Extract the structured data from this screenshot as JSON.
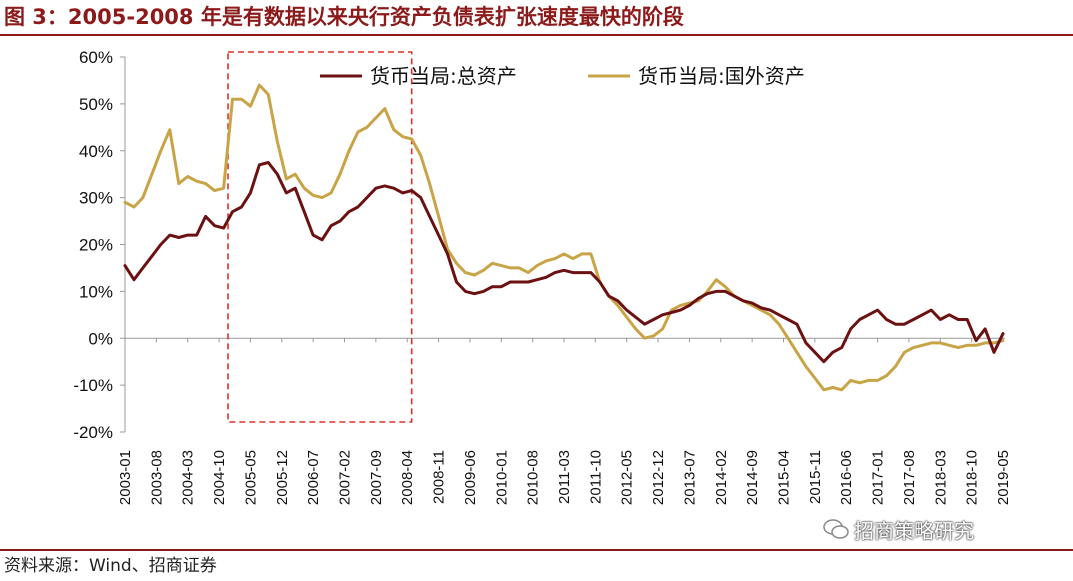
{
  "header": {
    "title": "图 3：2005-2008 年是有数据以来央行资产负债表扩张速度最快的阶段"
  },
  "footer": {
    "source": "资料来源：Wind、招商证券"
  },
  "watermark": {
    "text": "招商策略研究"
  },
  "colors": {
    "series_total": "#6b1111",
    "series_foreign": "#c8a446",
    "highlight_box": "#e0302a",
    "rule": "#8c1a1a",
    "axis": "#999999"
  },
  "chart_data": {
    "type": "line",
    "title": "",
    "xlabel": "",
    "ylabel": "",
    "ylim": [
      -0.2,
      0.6
    ],
    "yticks": [
      "60%",
      "50%",
      "40%",
      "30%",
      "20%",
      "10%",
      "0%",
      "-10%",
      "-20%"
    ],
    "ytick_values": [
      0.6,
      0.5,
      0.4,
      0.3,
      0.2,
      0.1,
      0.0,
      -0.1,
      -0.2
    ],
    "xticks": [
      "2003-01",
      "2003-08",
      "2004-03",
      "2004-10",
      "2005-05",
      "2005-12",
      "2006-07",
      "2007-02",
      "2007-09",
      "2008-04",
      "2008-11",
      "2009-06",
      "2010-01",
      "2010-08",
      "2011-03",
      "2011-10",
      "2012-05",
      "2012-12",
      "2013-07",
      "2014-02",
      "2014-09",
      "2015-04",
      "2015-11",
      "2016-06",
      "2017-01",
      "2017-08",
      "2018-03",
      "2018-10",
      "2019-05"
    ],
    "legend_position": "top-center",
    "grid": false,
    "highlight": {
      "from": "2004-12",
      "to": "2008-05"
    },
    "series": [
      {
        "name": "货币当局:总资产",
        "x": [
          "2003-01",
          "2003-03",
          "2003-05",
          "2003-07",
          "2003-09",
          "2003-11",
          "2004-01",
          "2004-03",
          "2004-05",
          "2004-07",
          "2004-09",
          "2004-11",
          "2005-01",
          "2005-03",
          "2005-05",
          "2005-07",
          "2005-09",
          "2005-11",
          "2006-01",
          "2006-03",
          "2006-05",
          "2006-07",
          "2006-09",
          "2006-11",
          "2007-01",
          "2007-03",
          "2007-05",
          "2007-07",
          "2007-09",
          "2007-11",
          "2008-01",
          "2008-03",
          "2008-05",
          "2008-07",
          "2008-09",
          "2008-11",
          "2009-01",
          "2009-03",
          "2009-05",
          "2009-07",
          "2009-09",
          "2009-11",
          "2010-01",
          "2010-03",
          "2010-05",
          "2010-07",
          "2010-09",
          "2010-11",
          "2011-01",
          "2011-03",
          "2011-05",
          "2011-07",
          "2011-09",
          "2011-11",
          "2012-01",
          "2012-03",
          "2012-05",
          "2012-07",
          "2012-09",
          "2012-11",
          "2013-01",
          "2013-03",
          "2013-05",
          "2013-07",
          "2013-09",
          "2013-11",
          "2014-01",
          "2014-03",
          "2014-05",
          "2014-07",
          "2014-09",
          "2014-11",
          "2015-01",
          "2015-03",
          "2015-05",
          "2015-07",
          "2015-09",
          "2015-11",
          "2016-01",
          "2016-03",
          "2016-05",
          "2016-07",
          "2016-09",
          "2016-11",
          "2017-01",
          "2017-03",
          "2017-05",
          "2017-07",
          "2017-09",
          "2017-11",
          "2018-01",
          "2018-03",
          "2018-05",
          "2018-07",
          "2018-09",
          "2018-11",
          "2019-01",
          "2019-03",
          "2019-05"
        ],
        "values": [
          0.155,
          0.125,
          0.15,
          0.175,
          0.2,
          0.22,
          0.215,
          0.22,
          0.22,
          0.26,
          0.24,
          0.235,
          0.27,
          0.28,
          0.31,
          0.37,
          0.375,
          0.35,
          0.31,
          0.32,
          0.27,
          0.22,
          0.21,
          0.24,
          0.25,
          0.27,
          0.28,
          0.3,
          0.32,
          0.325,
          0.32,
          0.31,
          0.315,
          0.3,
          0.26,
          0.22,
          0.18,
          0.12,
          0.1,
          0.095,
          0.1,
          0.11,
          0.11,
          0.12,
          0.12,
          0.12,
          0.125,
          0.13,
          0.14,
          0.145,
          0.14,
          0.14,
          0.14,
          0.12,
          0.09,
          0.08,
          0.06,
          0.045,
          0.03,
          0.04,
          0.05,
          0.055,
          0.06,
          0.07,
          0.085,
          0.095,
          0.1,
          0.1,
          0.09,
          0.08,
          0.075,
          0.065,
          0.06,
          0.05,
          0.04,
          0.03,
          -0.01,
          -0.03,
          -0.05,
          -0.03,
          -0.02,
          0.02,
          0.04,
          0.05,
          0.06,
          0.04,
          0.03,
          0.03,
          0.04,
          0.05,
          0.06,
          0.04,
          0.05,
          0.04,
          0.04,
          -0.005,
          0.02,
          -0.03,
          0.01
        ]
      },
      {
        "name": "货币当局:国外资产",
        "x": [
          "2003-01",
          "2003-03",
          "2003-05",
          "2003-07",
          "2003-09",
          "2003-11",
          "2004-01",
          "2004-03",
          "2004-05",
          "2004-07",
          "2004-09",
          "2004-11",
          "2005-01",
          "2005-03",
          "2005-05",
          "2005-07",
          "2005-09",
          "2005-11",
          "2006-01",
          "2006-03",
          "2006-05",
          "2006-07",
          "2006-09",
          "2006-11",
          "2007-01",
          "2007-03",
          "2007-05",
          "2007-07",
          "2007-09",
          "2007-11",
          "2008-01",
          "2008-03",
          "2008-05",
          "2008-07",
          "2008-09",
          "2008-11",
          "2009-01",
          "2009-03",
          "2009-05",
          "2009-07",
          "2009-09",
          "2009-11",
          "2010-01",
          "2010-03",
          "2010-05",
          "2010-07",
          "2010-09",
          "2010-11",
          "2011-01",
          "2011-03",
          "2011-05",
          "2011-07",
          "2011-09",
          "2011-11",
          "2012-01",
          "2012-03",
          "2012-05",
          "2012-07",
          "2012-09",
          "2012-11",
          "2013-01",
          "2013-03",
          "2013-05",
          "2013-07",
          "2013-09",
          "2013-11",
          "2014-01",
          "2014-03",
          "2014-05",
          "2014-07",
          "2014-09",
          "2014-11",
          "2015-01",
          "2015-03",
          "2015-05",
          "2015-07",
          "2015-09",
          "2015-11",
          "2016-01",
          "2016-03",
          "2016-05",
          "2016-07",
          "2016-09",
          "2016-11",
          "2017-01",
          "2017-03",
          "2017-05",
          "2017-07",
          "2017-09",
          "2017-11",
          "2018-01",
          "2018-03",
          "2018-05",
          "2018-07",
          "2018-09",
          "2018-11",
          "2019-01",
          "2019-03",
          "2019-05"
        ],
        "values": [
          0.29,
          0.28,
          0.3,
          0.35,
          0.4,
          0.445,
          0.33,
          0.345,
          0.335,
          0.33,
          0.315,
          0.32,
          0.51,
          0.51,
          0.495,
          0.54,
          0.52,
          0.42,
          0.34,
          0.35,
          0.32,
          0.305,
          0.3,
          0.31,
          0.35,
          0.4,
          0.44,
          0.45,
          0.47,
          0.49,
          0.445,
          0.43,
          0.425,
          0.39,
          0.33,
          0.26,
          0.19,
          0.16,
          0.14,
          0.135,
          0.145,
          0.16,
          0.155,
          0.15,
          0.15,
          0.14,
          0.155,
          0.165,
          0.17,
          0.18,
          0.17,
          0.18,
          0.18,
          0.12,
          0.09,
          0.07,
          0.045,
          0.02,
          0.0,
          0.005,
          0.02,
          0.06,
          0.07,
          0.075,
          0.08,
          0.1,
          0.125,
          0.11,
          0.09,
          0.08,
          0.07,
          0.06,
          0.05,
          0.03,
          0.0,
          -0.03,
          -0.06,
          -0.085,
          -0.11,
          -0.105,
          -0.11,
          -0.09,
          -0.095,
          -0.09,
          -0.09,
          -0.08,
          -0.06,
          -0.03,
          -0.02,
          -0.015,
          -0.01,
          -0.01,
          -0.015,
          -0.02,
          -0.015,
          -0.015,
          -0.01,
          -0.01,
          -0.005
        ]
      }
    ]
  }
}
